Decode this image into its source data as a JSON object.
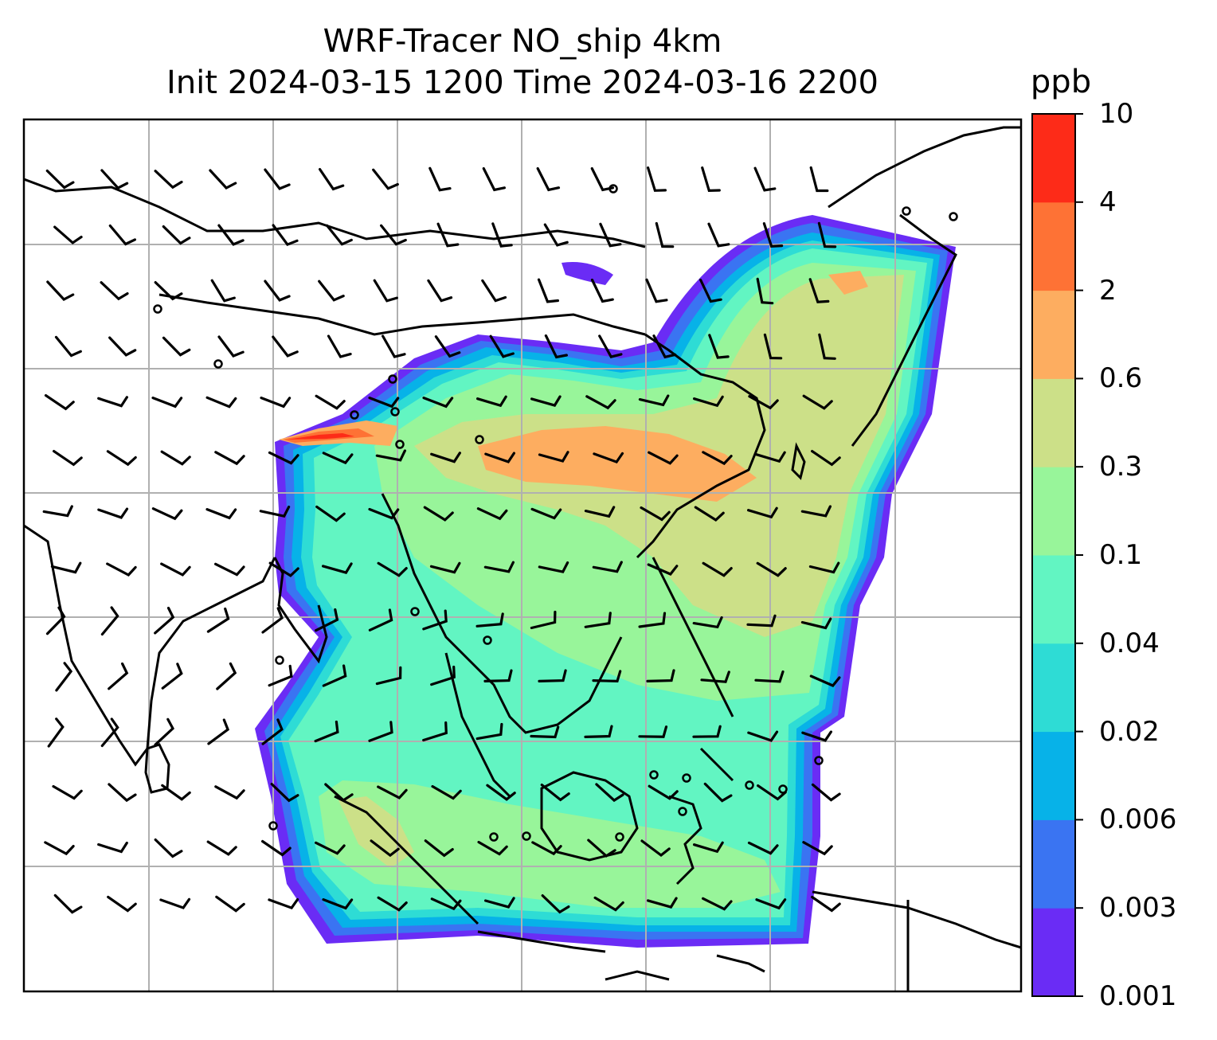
{
  "title": {
    "line1": "WRF-Tracer NO_ship 4km",
    "line2": "Init 2024-03-15 1200 Time 2024-03-16 2200"
  },
  "colorbar": {
    "unit": "ppb",
    "levels": [
      "0.001",
      "0.003",
      "0.006",
      "0.02",
      "0.04",
      "0.1",
      "0.3",
      "0.6",
      "2",
      "4",
      "10"
    ],
    "colors": [
      "#6a2cf5",
      "#3a74f2",
      "#07b2e8",
      "#2edcd5",
      "#62f5c2",
      "#98f59a",
      "#cce088",
      "#fdad60",
      "#fe7235",
      "#fd2b18"
    ]
  },
  "map": {
    "gridlines": true,
    "wind_barbs": true,
    "coastlines": true
  }
}
